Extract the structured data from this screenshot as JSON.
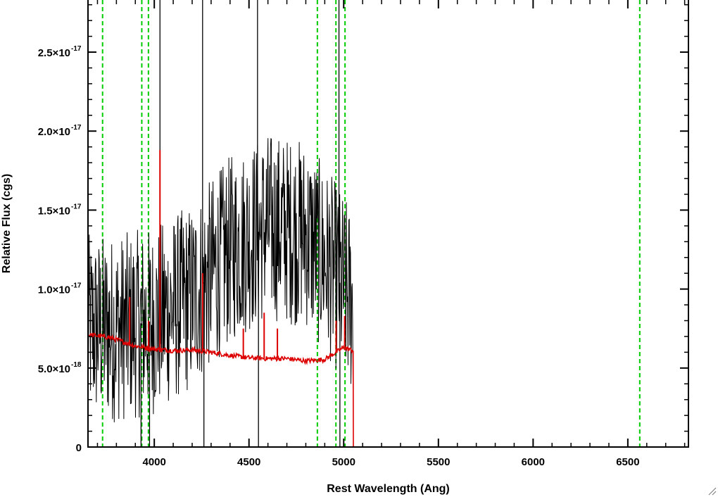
{
  "chart_data": {
    "type": "line",
    "xlabel": "Rest Wavelength (Ang)",
    "ylabel": "Relative Flux (cgs)",
    "xlim": [
      3650,
      6820
    ],
    "ylim": [
      0,
      2.83e-17
    ],
    "x_ticks": [
      4000,
      4500,
      5000,
      5500,
      6000,
      6500
    ],
    "y_ticks": [
      {
        "value": 0,
        "mantissa": "0",
        "exponent": ""
      },
      {
        "value": 5e-18,
        "mantissa": "5.0×10",
        "exponent": "-18"
      },
      {
        "value": 1e-17,
        "mantissa": "1.0×10",
        "exponent": "-17"
      },
      {
        "value": 1.5e-17,
        "mantissa": "1.5×10",
        "exponent": "-17"
      },
      {
        "value": 2e-17,
        "mantissa": "2.0×10",
        "exponent": "-17"
      },
      {
        "value": 2.5e-17,
        "mantissa": "2.5×10",
        "exponent": "-17"
      }
    ],
    "grid": false,
    "legend": "none",
    "reference_lines": [
      {
        "x": 3727,
        "color": "#00cc00",
        "style": "dashed"
      },
      {
        "x": 3934,
        "color": "#00cc00",
        "style": "dashed"
      },
      {
        "x": 3969,
        "color": "#00cc00",
        "style": "dashed"
      },
      {
        "x": 4861,
        "color": "#00cc00",
        "style": "dashed"
      },
      {
        "x": 4959,
        "color": "#00cc00",
        "style": "dashed"
      },
      {
        "x": 5007,
        "color": "#00cc00",
        "style": "dashed"
      },
      {
        "x": 6563,
        "color": "#00cc00",
        "style": "dashed"
      }
    ],
    "series": [
      {
        "color": "#000000",
        "style": "noisy spectrum",
        "x_range": [
          3650,
          5050
        ],
        "trend": [
          [
            3650,
            7.5e-18
          ],
          [
            3800,
            7.5e-18
          ],
          [
            4000,
            8e-18
          ],
          [
            4200,
            9.5e-18
          ],
          [
            4400,
            1.25e-17
          ],
          [
            4600,
            1.4e-17
          ],
          [
            4800,
            1.35e-17
          ],
          [
            4950,
            1.1e-17
          ],
          [
            5050,
            9e-18
          ]
        ],
        "noise_amplitude": 6e-18,
        "spikes": [
          {
            "x": 4030,
            "y": 2.83e-17
          },
          {
            "x": 4255,
            "y": 2.83e-17
          },
          {
            "x": 4262,
            "y": 0
          },
          {
            "x": 4545,
            "y": 2.83e-17
          },
          {
            "x": 4550,
            "y": 0
          },
          {
            "x": 4975,
            "y": 2.83e-17
          },
          {
            "x": 4980,
            "y": 0
          },
          {
            "x": 3930,
            "y": 0
          },
          {
            "x": 3975,
            "y": 0
          }
        ]
      },
      {
        "color": "#dd0000",
        "style": "model spectrum",
        "x_range": [
          3650,
          6820
        ],
        "points": [
          [
            3650,
            7.1e-18
          ],
          [
            3700,
            7.05e-18
          ],
          [
            3760,
            6.95e-18
          ],
          [
            3800,
            6.8e-18
          ],
          [
            3850,
            6.6e-18
          ],
          [
            3900,
            6.4e-18
          ],
          [
            3950,
            6.3e-18
          ],
          [
            4000,
            6.2e-18
          ],
          [
            4050,
            6.15e-18
          ],
          [
            4100,
            6.1e-18
          ],
          [
            4200,
            6.15e-18
          ],
          [
            4300,
            6e-18
          ],
          [
            4400,
            5.8e-18
          ],
          [
            4500,
            5.65e-18
          ],
          [
            4600,
            5.6e-18
          ],
          [
            4700,
            5.6e-18
          ],
          [
            4800,
            5.45e-18
          ],
          [
            4900,
            5.55e-18
          ],
          [
            5000,
            6.3e-18
          ],
          [
            5050,
            6.1e-18
          ],
          [
            5051,
            0
          ],
          [
            6820,
            0
          ]
        ],
        "emission_lines": [
          {
            "x": 3870,
            "y": 9.5e-18
          },
          {
            "x": 3970,
            "y": 8e-18
          },
          {
            "x": 4030,
            "y": 1.88e-17
          },
          {
            "x": 4255,
            "y": 1.1e-17
          },
          {
            "x": 4470,
            "y": 7.5e-18
          },
          {
            "x": 4580,
            "y": 8.5e-18
          },
          {
            "x": 4650,
            "y": 7.5e-18
          },
          {
            "x": 4960,
            "y": 8e-18
          },
          {
            "x": 5005,
            "y": 8.3e-18
          }
        ]
      }
    ]
  }
}
